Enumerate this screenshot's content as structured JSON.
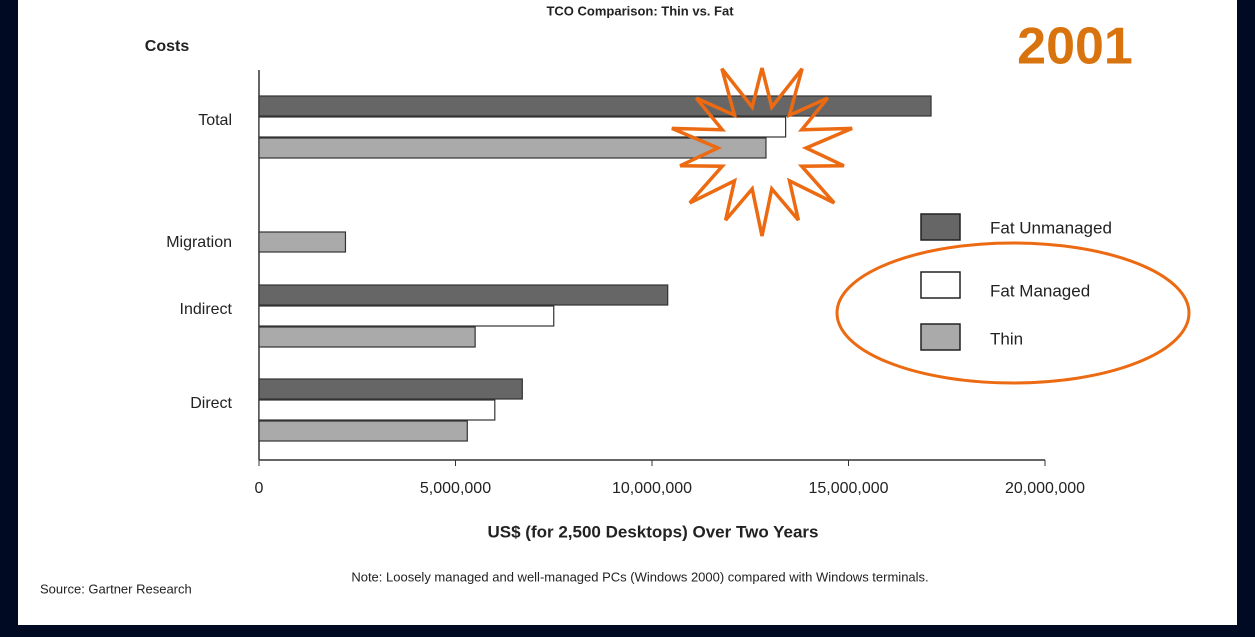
{
  "chart_data": {
    "type": "bar",
    "orientation": "horizontal",
    "title": "TCO Comparison: Thin vs. Fat",
    "y_label": "Costs",
    "x_label": "US$ (for 2,500 Desktops) Over Two Years",
    "annotation": "2001",
    "note": "Note: Loosely managed and well-managed PCs (Windows 2000) compared with Windows terminals.",
    "source": "Source: Gartner Research",
    "categories": [
      "Total",
      "Migration",
      "Indirect",
      "Direct"
    ],
    "series": [
      {
        "name": "Fat Unmanaged",
        "color": "#666666",
        "values": [
          17100000,
          null,
          10400000,
          6700000
        ]
      },
      {
        "name": "Fat Managed",
        "color": "#ffffff",
        "values": [
          13400000,
          null,
          7500000,
          6000000
        ]
      },
      {
        "name": "Thin",
        "color": "#aaaaaa",
        "values": [
          12900000,
          2200000,
          5500000,
          5300000
        ]
      }
    ],
    "xlim": [
      0,
      20000000
    ],
    "xticks": [
      0,
      {
        "value": 5000000,
        "label": "5,000,000"
      },
      {
        "value": 10000000,
        "label": "10,000,000"
      },
      {
        "value": 15000000,
        "label": "15,000,000"
      },
      {
        "value": 20000000,
        "label": "20,000,000"
      }
    ],
    "legend": "right"
  }
}
